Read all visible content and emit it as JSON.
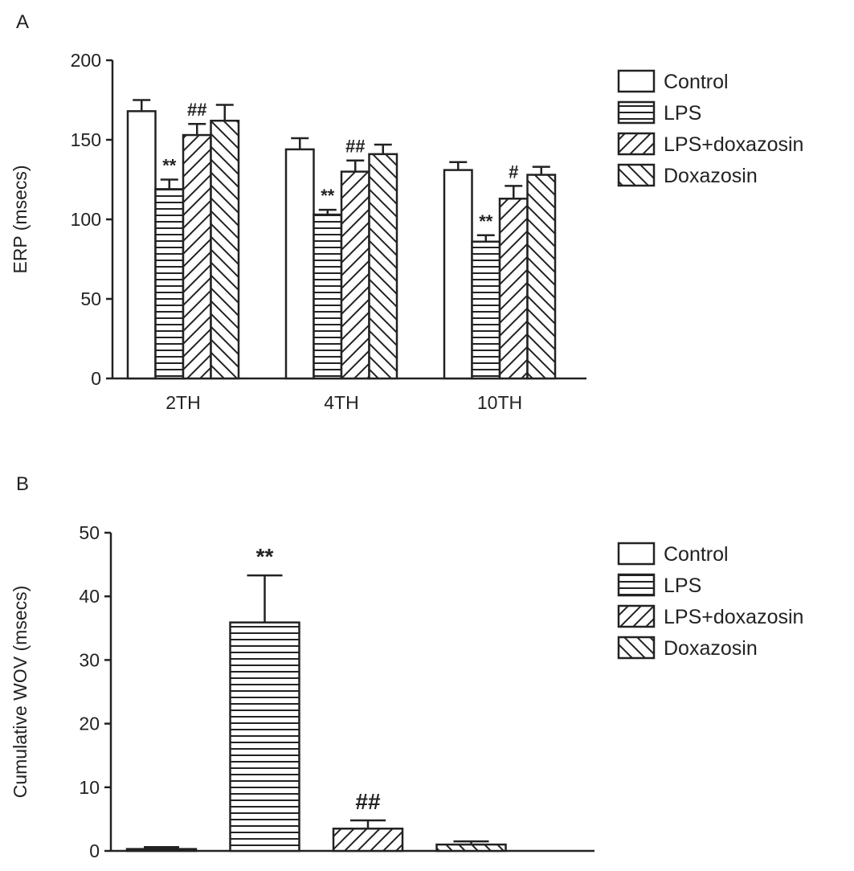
{
  "chart_data": [
    {
      "type": "bar",
      "panel_label": "A",
      "title": "",
      "xlabel": "",
      "ylabel": "ERP (msecs)",
      "ylim": [
        0,
        200
      ],
      "yticks": [
        "0",
        "50",
        "100",
        "150",
        "200"
      ],
      "categories": [
        "2TH",
        "4TH",
        "10TH"
      ],
      "legend_position": "right",
      "series": [
        {
          "name": "Control",
          "pattern": "open",
          "values": [
            168,
            144,
            131
          ],
          "errors": [
            7,
            7,
            5
          ],
          "annotations": [
            "",
            "",
            ""
          ]
        },
        {
          "name": "LPS",
          "pattern": "horizontal",
          "values": [
            119,
            103,
            86
          ],
          "errors": [
            6,
            3,
            4
          ],
          "annotations": [
            "**",
            "**",
            "**"
          ]
        },
        {
          "name": "LPS+doxazosin",
          "pattern": "diagonal-up",
          "values": [
            153,
            130,
            113
          ],
          "errors": [
            7,
            7,
            8
          ],
          "annotations": [
            "##",
            "##",
            "#"
          ]
        },
        {
          "name": "Doxazosin",
          "pattern": "diagonal-down",
          "values": [
            162,
            141,
            128
          ],
          "errors": [
            10,
            6,
            5
          ],
          "annotations": [
            "",
            "",
            ""
          ]
        }
      ]
    },
    {
      "type": "bar",
      "panel_label": "B",
      "title": "",
      "xlabel": "",
      "ylabel": "Cumulative WOV (msecs)",
      "ylim": [
        0,
        50
      ],
      "yticks": [
        "0",
        "10",
        "20",
        "30",
        "40",
        "50"
      ],
      "categories": [
        ""
      ],
      "legend_position": "right",
      "series": [
        {
          "name": "Control",
          "pattern": "open",
          "values": [
            0.3
          ],
          "errors": [
            0.3
          ],
          "annotations": [
            ""
          ]
        },
        {
          "name": "LPS",
          "pattern": "horizontal",
          "values": [
            35.9
          ],
          "errors": [
            7.4
          ],
          "annotations": [
            "**"
          ]
        },
        {
          "name": "LPS+doxazosin",
          "pattern": "diagonal-up",
          "values": [
            3.5
          ],
          "errors": [
            1.3
          ],
          "annotations": [
            "##"
          ]
        },
        {
          "name": "Doxazosin",
          "pattern": "diagonal-down",
          "values": [
            1.0
          ],
          "errors": [
            0.5
          ],
          "annotations": [
            ""
          ]
        }
      ]
    }
  ]
}
